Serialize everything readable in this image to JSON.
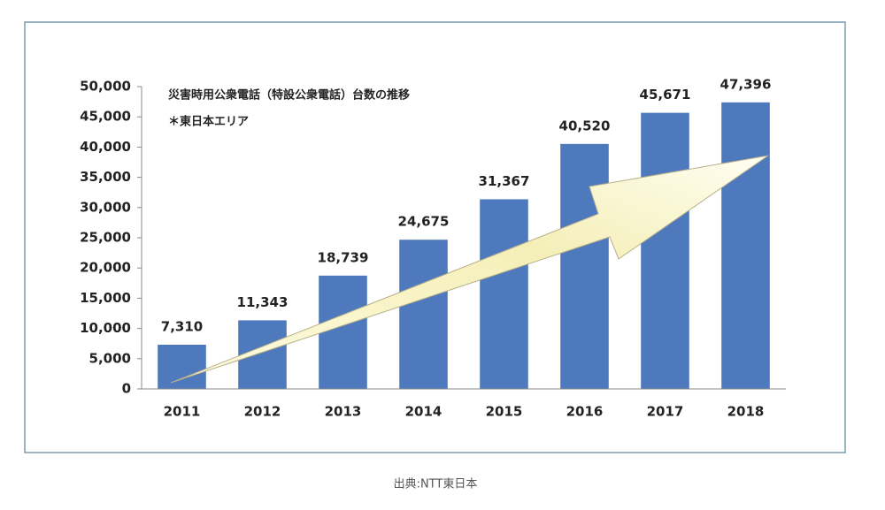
{
  "chart_data": {
    "type": "bar",
    "title": "災害時用公衆電話（特設公衆電話）台数の推移",
    "subtitle": "＊東日本エリア",
    "categories": [
      "2011",
      "2012",
      "2013",
      "2014",
      "2015",
      "2016",
      "2017",
      "2018"
    ],
    "values": [
      7310,
      11343,
      18739,
      24675,
      31367,
      40520,
      45671,
      47396
    ],
    "value_labels": [
      "7,310",
      "11,343",
      "18,739",
      "24,675",
      "31,367",
      "40,520",
      "45,671",
      "47,396"
    ],
    "color": "#4f79bd",
    "ylim": [
      0,
      50000
    ],
    "yticks": [
      0,
      {
        "value": 5000,
        "label": "5,000"
      },
      {
        "value": 10000,
        "label": "10,000"
      },
      {
        "value": 15000,
        "label": "15,000"
      },
      {
        "value": 20000,
        "label": "20,000"
      },
      {
        "value": 25000,
        "label": "25,000"
      },
      {
        "value": 30000,
        "label": "30,000"
      },
      {
        "value": 35000,
        "label": "35,000"
      },
      {
        "value": 40000,
        "label": "40,000"
      },
      {
        "value": 45000,
        "label": "45,000"
      },
      {
        "value": 50000,
        "label": "50,000"
      }
    ],
    "grid": false
  },
  "source": "出典:NTT東日本"
}
